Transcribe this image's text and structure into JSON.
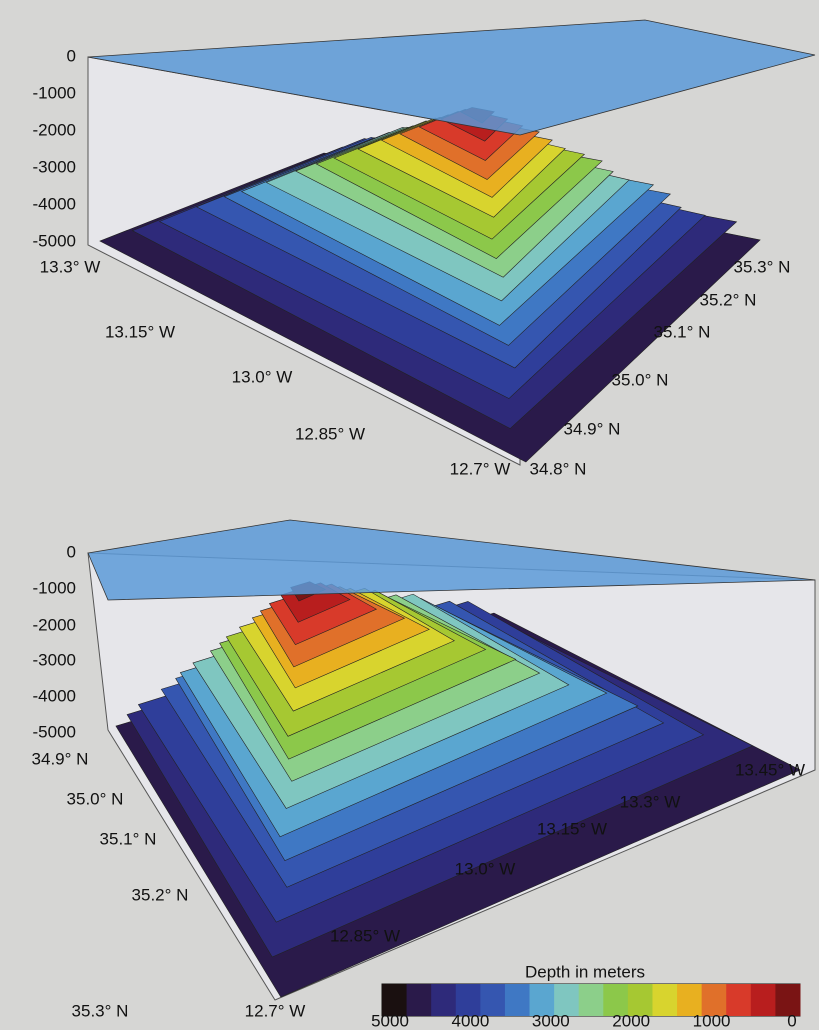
{
  "panels": [
    {
      "z_ticks": [
        0,
        -1000,
        -2000,
        -3000,
        -4000,
        -5000
      ],
      "lon_labels": [
        "13.3° W",
        "13.15° W",
        "13.0° W",
        "12.85° W",
        "12.7° W"
      ],
      "lat_labels": [
        "34.8° N",
        "34.9° N",
        "35.0° N",
        "35.1° N",
        "35.2° N",
        "35.3° N"
      ]
    },
    {
      "z_ticks": [
        0,
        -1000,
        -2000,
        -3000,
        -4000,
        -5000
      ],
      "lat_labels": [
        "34.9° N",
        "35.0° N",
        "35.1° N",
        "35.2° N",
        "35.3° N"
      ],
      "lon_labels": [
        "12.7° W",
        "12.85° W",
        "13.0° W",
        "13.15° W",
        "13.3° W",
        "13.45° W"
      ]
    }
  ],
  "colorbar": {
    "title": "Depth in meters",
    "colors": [
      "#1a1010",
      "#2a1a4a",
      "#2e2a7a",
      "#2f3e9a",
      "#3556b0",
      "#3f78c4",
      "#5aa6d0",
      "#7fc6c0",
      "#8ccf8a",
      "#8cc84a",
      "#a6c832",
      "#d8d42e",
      "#e8b020",
      "#e0702a",
      "#d83a2a",
      "#b81e1e",
      "#7a1414"
    ],
    "tick_labels": [
      5000,
      4000,
      3000,
      2000,
      1000,
      0
    ]
  }
}
